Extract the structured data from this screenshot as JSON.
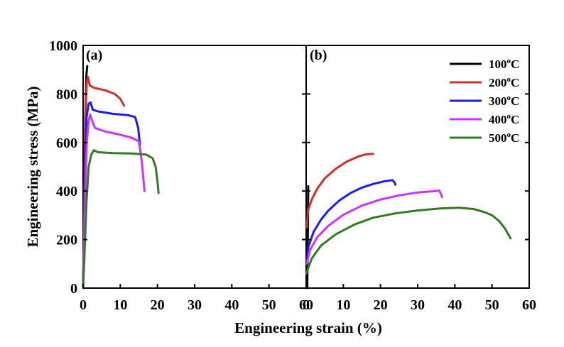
{
  "chart_data": {
    "type": "line",
    "xlabel": "Engineering strain (%)",
    "ylabel": "Engineering stress (MPa)",
    "ylim": [
      0,
      1000
    ],
    "y_ticks": [
      0,
      200,
      400,
      600,
      800,
      1000
    ],
    "grid": false,
    "legend": {
      "placement": "top-right",
      "entries": [
        {
          "temp": "100",
          "unit": "C",
          "color": "#000000"
        },
        {
          "temp": "200",
          "unit": "C",
          "color": "#d42b2b"
        },
        {
          "temp": "300",
          "unit": "C",
          "color": "#1a1aff"
        },
        {
          "temp": "400",
          "unit": "C",
          "color": "#cc33ff"
        },
        {
          "temp": "500",
          "unit": "C",
          "color": "#2e7d1e"
        }
      ]
    },
    "panels": [
      {
        "label": "(a)",
        "xlim": [
          0,
          60
        ],
        "x_ticks": [
          0,
          10,
          20,
          30,
          40,
          50,
          60
        ],
        "series": [
          {
            "color": "#000000",
            "points": [
              [
                0,
                0
              ],
              [
                0.3,
                350
              ],
              [
                0.6,
                700
              ],
              [
                0.9,
                880
              ],
              [
                1.1,
                915
              ]
            ]
          },
          {
            "color": "#d42b2b",
            "points": [
              [
                0,
                0
              ],
              [
                0.4,
                400
              ],
              [
                0.7,
                750
              ],
              [
                1,
                850
              ],
              [
                1.3,
                870
              ],
              [
                1.8,
                835
              ],
              [
                3,
                825
              ],
              [
                6,
                815
              ],
              [
                8.5,
                800
              ],
              [
                10,
                780
              ],
              [
                11,
                752
              ]
            ]
          },
          {
            "color": "#1a1aff",
            "points": [
              [
                0,
                0
              ],
              [
                0.5,
                400
              ],
              [
                0.9,
                700
              ],
              [
                1.5,
                760
              ],
              [
                2,
                765
              ],
              [
                2.6,
                735
              ],
              [
                4,
                728
              ],
              [
                8,
                718
              ],
              [
                12,
                713
              ],
              [
                14,
                705
              ],
              [
                14.8,
                660
              ],
              [
                15.3,
                590
              ]
            ]
          },
          {
            "color": "#cc33ff",
            "points": [
              [
                0,
                0
              ],
              [
                0.5,
                350
              ],
              [
                1,
                600
              ],
              [
                1.5,
                690
              ],
              [
                1.9,
                715
              ],
              [
                2.3,
                695
              ],
              [
                3.2,
                660
              ],
              [
                6,
                645
              ],
              [
                10,
                632
              ],
              [
                13,
                620
              ],
              [
                15,
                605
              ],
              [
                15.8,
                520
              ],
              [
                16.5,
                400
              ]
            ]
          },
          {
            "color": "#2e7d1e",
            "points": [
              [
                0,
                0
              ],
              [
                0.4,
                150
              ],
              [
                0.9,
                350
              ],
              [
                1.5,
                500
              ],
              [
                2.2,
                550
              ],
              [
                2.9,
                568
              ],
              [
                4,
                560
              ],
              [
                8,
                556
              ],
              [
                13,
                555
              ],
              [
                17,
                550
              ],
              [
                18.7,
                535
              ],
              [
                19.5,
                500
              ],
              [
                20,
                440
              ],
              [
                20.3,
                392
              ]
            ]
          }
        ]
      },
      {
        "label": "(b)",
        "xlim": [
          0,
          60
        ],
        "x_ticks": [
          0,
          10,
          20,
          30,
          40,
          50,
          60
        ],
        "series": [
          {
            "color": "#000000",
            "points": [
              [
                0.3,
                0
              ],
              [
                0.4,
                150
              ],
              [
                0.5,
                300
              ],
              [
                0.55,
                420
              ]
            ]
          },
          {
            "color": "#d42b2b",
            "points": [
              [
                0.2,
                250
              ],
              [
                0.5,
                320
              ],
              [
                1.5,
                365
              ],
              [
                3,
                410
              ],
              [
                5,
                452
              ],
              [
                8,
                492
              ],
              [
                11,
                522
              ],
              [
                14,
                542
              ],
              [
                16,
                551
              ],
              [
                18,
                553
              ]
            ]
          },
          {
            "color": "#1a1aff",
            "points": [
              [
                0.2,
                100
              ],
              [
                0.6,
                170
              ],
              [
                2,
                232
              ],
              [
                4,
                282
              ],
              [
                6,
                320
              ],
              [
                9,
                362
              ],
              [
                12,
                392
              ],
              [
                15,
                414
              ],
              [
                18,
                429
              ],
              [
                21,
                440
              ],
              [
                23.2,
                445
              ],
              [
                23.8,
                435
              ],
              [
                24,
                426
              ]
            ]
          },
          {
            "color": "#cc33ff",
            "points": [
              [
                0.2,
                100
              ],
              [
                1,
                155
              ],
              [
                3,
                210
              ],
              [
                6,
                257
              ],
              [
                10,
                302
              ],
              [
                15,
                340
              ],
              [
                20,
                365
              ],
              [
                25,
                382
              ],
              [
                30,
                394
              ],
              [
                35,
                400
              ],
              [
                35.8,
                402
              ],
              [
                36.2,
                390
              ],
              [
                36.6,
                375
              ]
            ]
          },
          {
            "color": "#2e7d1e",
            "points": [
              [
                0.1,
                60
              ],
              [
                0.5,
                80
              ],
              [
                1.5,
                122
              ],
              [
                4,
                175
              ],
              [
                8,
                222
              ],
              [
                13,
                262
              ],
              [
                18,
                290
              ],
              [
                24,
                308
              ],
              [
                30,
                320
              ],
              [
                36,
                328
              ],
              [
                41,
                331
              ],
              [
                45,
                326
              ],
              [
                48,
                313
              ],
              [
                50,
                300
              ],
              [
                52,
                275
              ],
              [
                53.5,
                245
              ],
              [
                55,
                205
              ]
            ]
          }
        ]
      }
    ]
  }
}
